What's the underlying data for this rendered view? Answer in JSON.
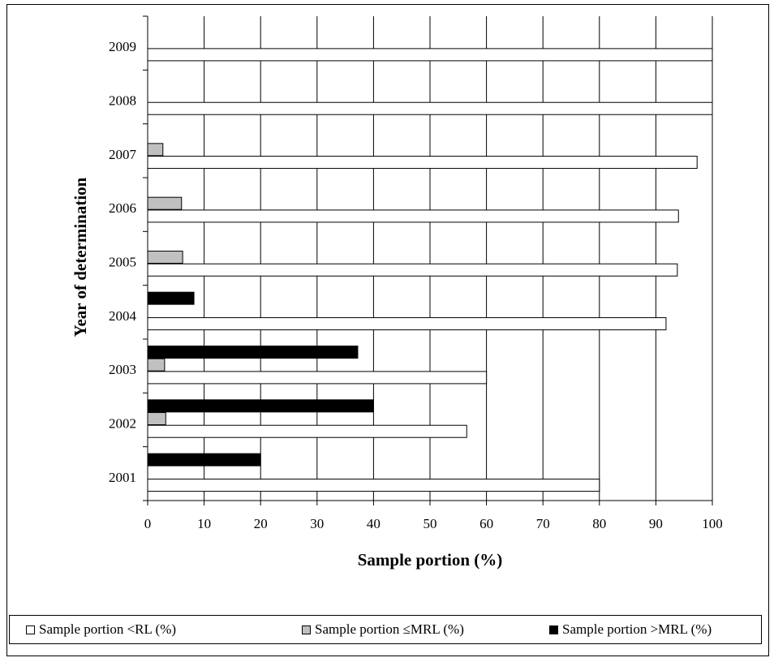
{
  "chart_data": {
    "type": "bar",
    "orientation": "horizontal",
    "categories": [
      "2001",
      "2002",
      "2003",
      "2004",
      "2005",
      "2006",
      "2007",
      "2008",
      "2009"
    ],
    "series": [
      {
        "name": "Sample portion <RL (%)",
        "values": [
          80,
          56.5,
          60,
          91.8,
          93.8,
          94,
          97.3,
          100,
          100
        ],
        "color": "#ffffff"
      },
      {
        "name": "Sample portion ≤MRL (%)",
        "values": [
          0,
          3.2,
          3,
          0,
          6.2,
          6,
          2.7,
          0,
          0
        ],
        "color": "#c0c0c0"
      },
      {
        "name": "Sample portion >MRL (%)",
        "values": [
          20,
          40,
          37.2,
          8.2,
          0,
          0,
          0,
          0,
          0
        ],
        "color": "#000000"
      }
    ],
    "xlabel": "Sample portion (%)",
    "ylabel": "Year of determination",
    "xlim": [
      0,
      100
    ],
    "xticks": [
      "0",
      "10",
      "20",
      "30",
      "40",
      "50",
      "60",
      "70",
      "80",
      "90",
      "100"
    ],
    "grid": true,
    "legend_position": "bottom"
  }
}
